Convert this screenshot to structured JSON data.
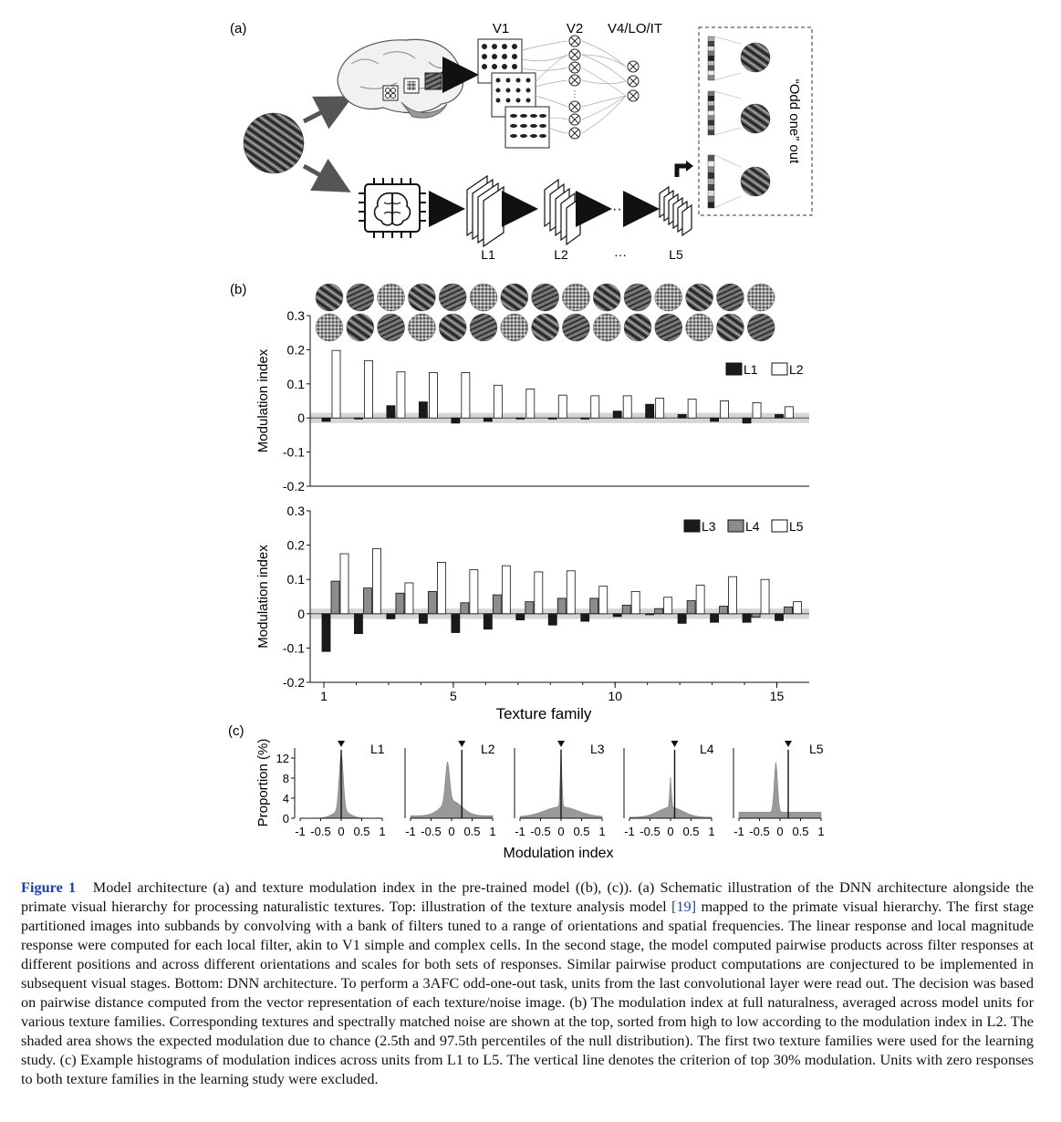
{
  "panel_a": {
    "label": "(a)",
    "stage_labels": [
      "V1",
      "V2",
      "V4/LO/IT"
    ],
    "layer_labels": [
      "L1",
      "L2",
      "···",
      "L5"
    ],
    "odd_one_out": "“Odd one” out"
  },
  "panel_b": {
    "label": "(b)"
  },
  "panel_c": {
    "label": "(c)"
  },
  "chart_data": [
    {
      "type": "bar",
      "ylabel": "Modulation index",
      "ylim": [
        -0.2,
        0.3
      ],
      "yticks": [
        "0.3",
        "0.2",
        "0.1",
        "0",
        "-0.1",
        "-0.2"
      ],
      "chance_band": [
        -0.015,
        0.015
      ],
      "categories": [
        1,
        2,
        3,
        4,
        5,
        6,
        7,
        8,
        9,
        10,
        11,
        12,
        13,
        14,
        15
      ],
      "series": [
        {
          "name": "L1",
          "color": "#1a1a1a",
          "values": [
            -0.01,
            -0.003,
            0.036,
            0.047,
            -0.015,
            -0.01,
            -0.003,
            -0.003,
            -0.003,
            0.02,
            0.04,
            0.01,
            -0.01,
            -0.015,
            0.01
          ]
        },
        {
          "name": "L2",
          "color": "#ffffff",
          "values": [
            0.198,
            0.168,
            0.135,
            0.133,
            0.133,
            0.096,
            0.085,
            0.067,
            0.065,
            0.065,
            0.058,
            0.055,
            0.05,
            0.045,
            0.033
          ]
        }
      ],
      "legend": "top-right"
    },
    {
      "type": "bar",
      "ylabel": "Modulation index",
      "xlabel": "Texture family",
      "ylim": [
        -0.2,
        0.3
      ],
      "yticks": [
        "0.3",
        "0.2",
        "0.1",
        "0",
        "-0.1",
        "-0.2"
      ],
      "xticks": [
        "1",
        "5",
        "10",
        "15"
      ],
      "chance_band": [
        -0.015,
        0.015
      ],
      "categories": [
        1,
        2,
        3,
        4,
        5,
        6,
        7,
        8,
        9,
        10,
        11,
        12,
        13,
        14,
        15
      ],
      "series": [
        {
          "name": "L3",
          "color": "#1a1a1a",
          "values": [
            -0.11,
            -0.058,
            -0.015,
            -0.028,
            -0.055,
            -0.045,
            -0.018,
            -0.033,
            -0.022,
            -0.008,
            -0.003,
            -0.028,
            -0.025,
            -0.025,
            -0.02
          ]
        },
        {
          "name": "L4",
          "color": "#8c8c8c",
          "values": [
            0.095,
            0.075,
            0.06,
            0.065,
            0.032,
            0.055,
            0.035,
            0.045,
            0.045,
            0.025,
            0.015,
            0.038,
            0.022,
            -0.01,
            0.02
          ]
        },
        {
          "name": "L5",
          "color": "#ffffff",
          "values": [
            0.175,
            0.19,
            0.09,
            0.15,
            0.128,
            0.14,
            0.122,
            0.125,
            0.08,
            0.065,
            0.048,
            0.083,
            0.108,
            0.1,
            0.035
          ]
        }
      ],
      "legend": "top-right"
    },
    {
      "type": "histogram",
      "ylabel": "Proportion (%)",
      "xlabel": "Modulation index",
      "yticks": [
        "12",
        "8",
        "4",
        "0"
      ],
      "xticks": [
        "-1",
        "-0.5",
        "0",
        "0.5",
        "1"
      ],
      "panels": [
        {
          "name": "L1",
          "criterion": 0.0
        },
        {
          "name": "L2",
          "criterion": 0.25
        },
        {
          "name": "L3",
          "criterion": 0.0
        },
        {
          "name": "L4",
          "criterion": 0.1
        },
        {
          "name": "L5",
          "criterion": 0.2
        }
      ]
    }
  ],
  "caption": {
    "figure_label": "Figure 1",
    "text_before_ref": "Model architecture (a) and texture modulation index in the pre-trained model ((b), (c)). (a) Schematic illustration of the DNN architecture alongside the primate visual hierarchy for processing naturalistic textures. Top: illustration of the texture analysis model",
    "ref": "[19]",
    "text_after_ref": "mapped to the primate visual hierarchy. The first stage partitioned images into subbands by convolving with a bank of filters tuned to a range of orientations and spatial frequencies. The linear response and local magnitude response were computed for each local filter, akin to V1 simple and complex cells. In the second stage, the model computed pairwise products across filter responses at different positions and across different orientations and scales for both sets of responses. Similar pairwise product computations are conjectured to be implemented in subsequent visual stages. Bottom: DNN architecture. To perform a 3AFC odd-one-out task, units from the last convolutional layer were read out. The decision was based on pairwise distance computed from the vector representation of each texture/noise image. (b) The modulation index at full naturalness, averaged across model units for various texture families. Corresponding textures and spectrally matched noise are shown at the top, sorted from high to low according to the modulation index in L2. The shaded area shows the expected modulation due to chance (2.5th and 97.5th percentiles of the null distribution). The first two texture families were used for the learning study. (c) Example histograms of modulation indices across units from L1 to L5. The vertical line denotes the criterion of top 30% modulation. Units with zero responses to both texture families in the learning study were excluded."
  }
}
